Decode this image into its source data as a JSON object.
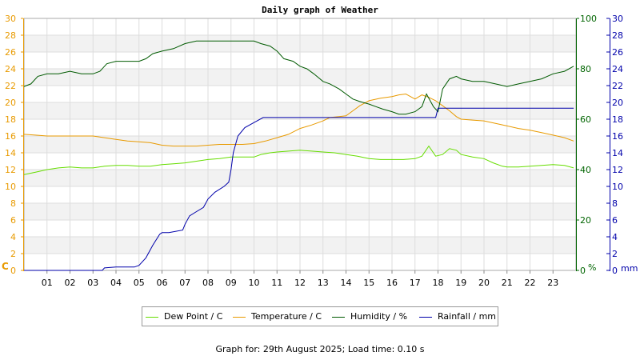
{
  "title": "Daily graph of Weather",
  "footer": "Graph for: 29th August 2025; Load time: 0.10 s",
  "legend": [
    {
      "label": "Dew Point / C",
      "color": "#66dd00"
    },
    {
      "label": "Temperature / C",
      "color": "#e89a00"
    },
    {
      "label": "Humidity / %",
      "color": "#005a00"
    },
    {
      "label": "Rainfall / mm",
      "color": "#0000aa"
    }
  ],
  "colors": {
    "temp_axis": "#e89a00",
    "humidity_axis": "#006400",
    "rain_axis": "#0000aa",
    "grid": "#dddddd",
    "band": "#f2f2f2"
  },
  "chart_data": {
    "type": "line",
    "title": "Daily graph of Weather",
    "x_ticks": [
      "01",
      "02",
      "03",
      "04",
      "05",
      "06",
      "07",
      "08",
      "09",
      "10",
      "11",
      "12",
      "13",
      "14",
      "15",
      "16",
      "17",
      "18",
      "19",
      "20",
      "21",
      "22",
      "23"
    ],
    "xlim": [
      0,
      24
    ],
    "left_axis": {
      "unit": "C",
      "range": [
        0,
        30
      ],
      "ticks": [
        "0",
        "2",
        "4",
        "6",
        "8",
        "10",
        "12",
        "14",
        "16",
        "18",
        "20",
        "22",
        "24",
        "26",
        "28",
        "30"
      ]
    },
    "humidity_axis": {
      "unit": "%",
      "range": [
        0,
        100
      ],
      "ticks": [
        "0",
        "20",
        "40",
        "60",
        "80",
        "100"
      ]
    },
    "rain_axis": {
      "unit": "mm",
      "range": [
        0,
        30
      ],
      "ticks": [
        "0",
        "2",
        "4",
        "6",
        "8",
        "10",
        "12",
        "14",
        "16",
        "18",
        "20",
        "22",
        "24",
        "26",
        "28",
        "30"
      ]
    },
    "grid": true,
    "legend_position": "bottom",
    "series": [
      {
        "name": "Dew Point / C",
        "axis": "left",
        "x": [
          0,
          0.5,
          1,
          1.5,
          2,
          2.5,
          3,
          3.5,
          4,
          4.5,
          5,
          5.5,
          6,
          6.5,
          7,
          7.5,
          8,
          8.5,
          9,
          9.5,
          10,
          10.3,
          10.7,
          11,
          11.5,
          12,
          12.5,
          13,
          13.5,
          14,
          14.5,
          15,
          15.5,
          16,
          16.5,
          17,
          17.3,
          17.6,
          17.9,
          18.2,
          18.5,
          18.8,
          19,
          19.5,
          20,
          20.4,
          20.8,
          21,
          21.5,
          22,
          22.5,
          23,
          23.5,
          23.9
        ],
        "y": [
          11.4,
          11.7,
          12.0,
          12.2,
          12.3,
          12.2,
          12.2,
          12.4,
          12.5,
          12.5,
          12.4,
          12.4,
          12.6,
          12.7,
          12.8,
          13.0,
          13.2,
          13.3,
          13.5,
          13.5,
          13.5,
          13.8,
          14.0,
          14.1,
          14.2,
          14.3,
          14.2,
          14.1,
          14.0,
          13.8,
          13.6,
          13.3,
          13.2,
          13.2,
          13.2,
          13.3,
          13.6,
          14.8,
          13.6,
          13.8,
          14.5,
          14.3,
          13.8,
          13.5,
          13.3,
          12.8,
          12.4,
          12.3,
          12.3,
          12.4,
          12.5,
          12.6,
          12.5,
          12.2
        ]
      },
      {
        "name": "Temperature / C",
        "axis": "left",
        "x": [
          0,
          0.5,
          1,
          1.5,
          2,
          2.5,
          3,
          3.5,
          4,
          4.5,
          5,
          5.5,
          6,
          6.5,
          7,
          7.5,
          8,
          8.5,
          9,
          9.5,
          10,
          10.5,
          11,
          11.5,
          12,
          12.5,
          13,
          13.3,
          13.7,
          14,
          14.3,
          14.6,
          15,
          15.5,
          16,
          16.3,
          16.6,
          17,
          17.3,
          17.6,
          17.9,
          18.2,
          18.5,
          18.8,
          19,
          19.5,
          20,
          20.5,
          21,
          21.5,
          22,
          22.5,
          23,
          23.5,
          23.9
        ],
        "y": [
          16.2,
          16.1,
          16.0,
          16.0,
          16.0,
          16.0,
          16.0,
          15.8,
          15.6,
          15.4,
          15.3,
          15.2,
          14.9,
          14.8,
          14.8,
          14.8,
          14.9,
          15.0,
          15.0,
          15.0,
          15.1,
          15.4,
          15.8,
          16.2,
          16.9,
          17.3,
          17.8,
          18.2,
          18.3,
          18.4,
          19.0,
          19.6,
          20.2,
          20.5,
          20.7,
          20.9,
          21.0,
          20.4,
          20.9,
          20.6,
          20.2,
          19.6,
          19.0,
          18.3,
          18.0,
          17.9,
          17.8,
          17.5,
          17.2,
          16.9,
          16.7,
          16.4,
          16.1,
          15.8,
          15.4
        ]
      },
      {
        "name": "Humidity / %",
        "axis": "humidity",
        "x": [
          0,
          0.3,
          0.6,
          1,
          1.5,
          2,
          2.5,
          3,
          3.3,
          3.6,
          4,
          4.5,
          5,
          5.3,
          5.6,
          6,
          6.5,
          7,
          7.5,
          8,
          8.5,
          9,
          9.5,
          10,
          10.3,
          10.7,
          11,
          11.3,
          11.7,
          12,
          12.3,
          12.6,
          13,
          13.3,
          13.7,
          14,
          14.3,
          14.6,
          15,
          15.3,
          15.6,
          16,
          16.3,
          16.6,
          17,
          17.3,
          17.5,
          17.8,
          18,
          18.2,
          18.5,
          18.8,
          19,
          19.5,
          20,
          20.5,
          21,
          21.5,
          22,
          22.5,
          23,
          23.5,
          23.9
        ],
        "y": [
          73,
          74,
          77,
          78,
          78,
          79,
          78,
          78,
          79,
          82,
          83,
          83,
          83,
          84,
          86,
          87,
          88,
          90,
          91,
          91,
          91,
          91,
          91,
          91,
          90,
          89,
          87,
          84,
          83,
          81,
          80,
          78,
          75,
          74,
          72,
          70,
          68,
          67,
          66,
          65,
          64,
          63,
          62,
          62,
          63,
          65,
          70,
          65,
          63,
          72,
          76,
          77,
          76,
          75,
          75,
          74,
          73,
          74,
          75,
          76,
          78,
          79,
          81
        ]
      },
      {
        "name": "Rainfall / mm",
        "axis": "rain",
        "x": [
          0,
          3.4,
          3.5,
          4,
          4.8,
          5,
          5.3,
          5.6,
          5.9,
          6,
          6.3,
          6.9,
          7,
          7.2,
          7.5,
          7.8,
          8,
          8.3,
          8.7,
          8.9,
          9,
          9.1,
          9.3,
          9.6,
          10,
          10.4,
          11,
          12,
          13,
          14,
          15,
          16,
          17,
          17.9,
          18,
          19,
          20,
          21,
          22,
          23,
          23.9
        ],
        "y": [
          0,
          0,
          0.3,
          0.4,
          0.4,
          0.6,
          1.5,
          3,
          4.3,
          4.5,
          4.5,
          4.8,
          5.5,
          6.5,
          7,
          7.5,
          8.5,
          9.3,
          10,
          10.5,
          12,
          14,
          16,
          17,
          17.6,
          18.2,
          18.2,
          18.2,
          18.2,
          18.2,
          18.2,
          18.2,
          18.2,
          18.2,
          19.3,
          19.3,
          19.3,
          19.3,
          19.3,
          19.3,
          19.3
        ]
      }
    ]
  }
}
